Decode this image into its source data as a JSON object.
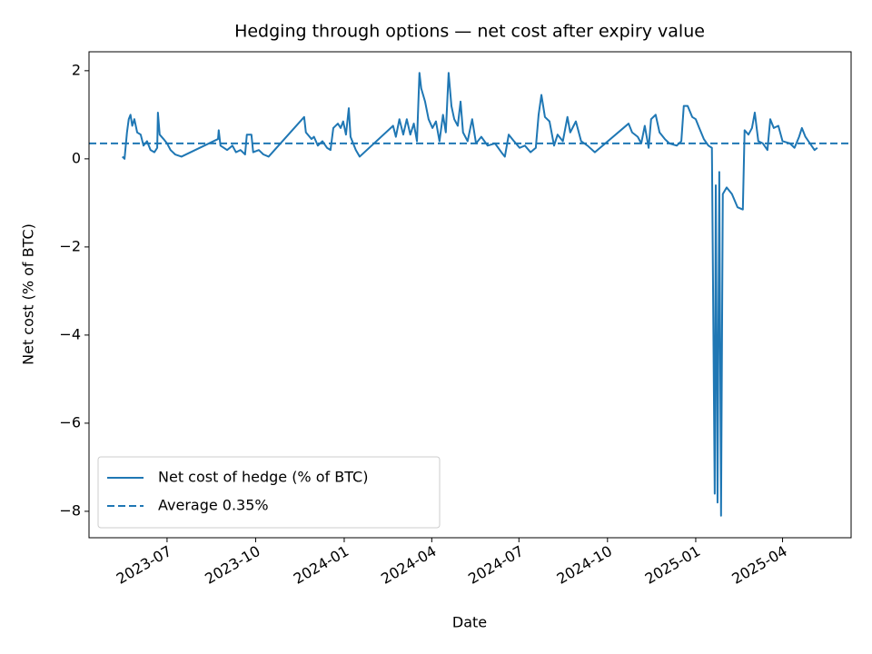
{
  "chart_data": {
    "type": "line",
    "title": "Hedging through options — net cost after expiry value",
    "xlabel": "Date",
    "ylabel": "Net cost (% of BTC)",
    "x": [
      2023.369,
      2023.375,
      2023.382,
      2023.387,
      2023.392,
      2023.397,
      2023.403,
      2023.411,
      2023.421,
      2023.429,
      2023.439,
      2023.449,
      2023.46,
      2023.468,
      2023.47,
      2023.475,
      2023.486,
      2023.496,
      2023.506,
      2023.519,
      2023.537,
      2023.641,
      2023.643,
      2023.648,
      2023.667,
      2023.682,
      2023.692,
      2023.705,
      2023.718,
      2023.723,
      2023.736,
      2023.741,
      2023.757,
      2023.77,
      2023.785,
      2023.886,
      2023.891,
      2023.907,
      2023.914,
      2023.925,
      2023.938,
      2023.951,
      2023.961,
      2023.969,
      2023.982,
      2023.99,
      2023.997,
      2024.005,
      2024.013,
      2024.018,
      2024.033,
      2024.044,
      2024.139,
      2024.147,
      2024.157,
      2024.168,
      2024.178,
      2024.188,
      2024.198,
      2024.207,
      2024.214,
      2024.219,
      2024.23,
      2024.24,
      2024.251,
      2024.261,
      2024.271,
      2024.281,
      2024.289,
      2024.297,
      2024.305,
      2024.313,
      2024.323,
      2024.331,
      2024.338,
      2024.351,
      2024.364,
      2024.375,
      2024.39,
      2024.408,
      2024.429,
      2024.447,
      2024.457,
      2024.468,
      2024.483,
      2024.499,
      2024.514,
      2024.53,
      2024.545,
      2024.553,
      2024.561,
      2024.571,
      2024.584,
      2024.597,
      2024.607,
      2024.622,
      2024.635,
      2024.643,
      2024.659,
      2024.674,
      2024.692,
      2024.713,
      2024.809,
      2024.819,
      2024.835,
      2024.845,
      2024.855,
      2024.866,
      2024.873,
      2024.886,
      2024.897,
      2024.912,
      2024.925,
      2024.946,
      2024.959,
      2024.966,
      2024.977,
      2024.99,
      2025.0,
      2025.01,
      2025.023,
      2025.036,
      2025.046,
      2025.054,
      2025.057,
      2025.062,
      2025.067,
      2025.072,
      2025.077,
      2025.088,
      2025.103,
      2025.119,
      2025.134,
      2025.139,
      2025.15,
      2025.16,
      2025.168,
      2025.178,
      2025.191,
      2025.204,
      2025.212,
      2025.222,
      2025.235,
      2025.247,
      2025.268,
      2025.281,
      2025.294,
      2025.302,
      2025.312,
      2025.325,
      2025.338,
      2025.346
    ],
    "series": [
      {
        "name": "Net cost of hedge (% of BTC)",
        "color": "#1f77b4",
        "style": "solid",
        "values": [
          0.05,
          0.0,
          0.6,
          0.9,
          1.0,
          0.75,
          0.9,
          0.6,
          0.55,
          0.3,
          0.4,
          0.2,
          0.15,
          0.25,
          1.05,
          0.55,
          0.45,
          0.35,
          0.2,
          0.1,
          0.05,
          0.45,
          0.65,
          0.3,
          0.2,
          0.3,
          0.15,
          0.2,
          0.1,
          0.55,
          0.55,
          0.15,
          0.2,
          0.1,
          0.05,
          0.95,
          0.6,
          0.45,
          0.5,
          0.3,
          0.4,
          0.25,
          0.2,
          0.7,
          0.8,
          0.7,
          0.85,
          0.55,
          1.15,
          0.5,
          0.2,
          0.05,
          0.75,
          0.5,
          0.9,
          0.55,
          0.9,
          0.55,
          0.8,
          0.4,
          1.95,
          1.6,
          1.3,
          0.9,
          0.7,
          0.85,
          0.4,
          1.0,
          0.6,
          1.95,
          1.2,
          0.9,
          0.75,
          1.3,
          0.6,
          0.4,
          0.9,
          0.35,
          0.5,
          0.3,
          0.35,
          0.15,
          0.05,
          0.55,
          0.4,
          0.25,
          0.3,
          0.15,
          0.25,
          1.0,
          1.45,
          0.95,
          0.85,
          0.3,
          0.55,
          0.4,
          0.95,
          0.6,
          0.85,
          0.4,
          0.3,
          0.15,
          0.8,
          0.6,
          0.5,
          0.35,
          0.75,
          0.25,
          0.9,
          1.0,
          0.6,
          0.45,
          0.35,
          0.3,
          0.4,
          1.2,
          1.2,
          0.95,
          0.9,
          0.7,
          0.45,
          0.3,
          0.25,
          -7.6,
          -0.6,
          -7.8,
          -0.3,
          -8.1,
          -0.8,
          -0.65,
          -0.8,
          -1.1,
          -1.15,
          0.65,
          0.55,
          0.7,
          1.05,
          0.4,
          0.35,
          0.2,
          0.9,
          0.7,
          0.75,
          0.4,
          0.35,
          0.25,
          0.5,
          0.7,
          0.5,
          0.35,
          0.2,
          0.25
        ]
      }
    ],
    "hlines": [
      {
        "name": "Average 0.35%",
        "value": 0.35,
        "color": "#1f77b4",
        "style": "dashed"
      }
    ],
    "xlim": [
      2023.274,
      2025.442
    ],
    "xticks": [
      {
        "value": 2023.496,
        "label": "2023-07"
      },
      {
        "value": 2023.748,
        "label": "2023-10"
      },
      {
        "value": 2024.0,
        "label": "2024-01"
      },
      {
        "value": 2024.249,
        "label": "2024-04"
      },
      {
        "value": 2024.497,
        "label": "2024-07"
      },
      {
        "value": 2024.749,
        "label": "2024-10"
      },
      {
        "value": 2025.0,
        "label": "2025-01"
      },
      {
        "value": 2025.247,
        "label": "2025-04"
      }
    ],
    "ylim": [
      -8.6,
      2.43
    ],
    "yticks": [
      {
        "value": -8,
        "label": "−8"
      },
      {
        "value": -6,
        "label": "−6"
      },
      {
        "value": -4,
        "label": "−4"
      },
      {
        "value": -2,
        "label": "−2"
      },
      0,
      2
    ],
    "grid": false,
    "legend": "lower left"
  }
}
